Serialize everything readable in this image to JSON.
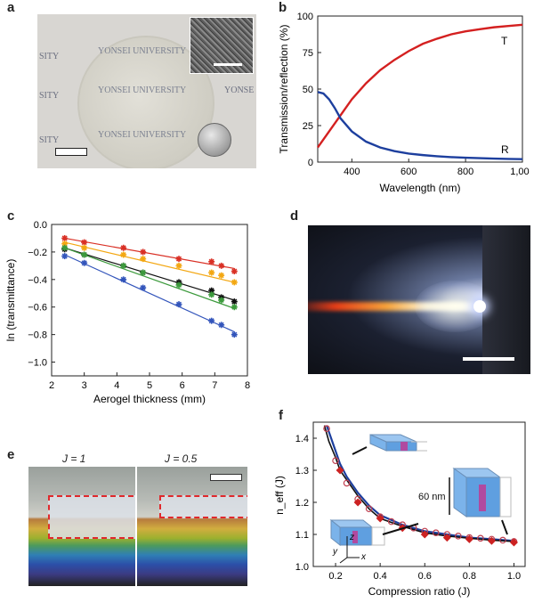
{
  "panels": {
    "a": {
      "label": "a",
      "watermark": "YONSEI UNIVERSITY",
      "watermark_left": "SITY",
      "watermark_right": "YONSE"
    },
    "b": {
      "label": "b"
    },
    "c": {
      "label": "c"
    },
    "d": {
      "label": "d"
    },
    "e": {
      "label": "e",
      "j1_label": "J = 1",
      "j05_label": "J = 0.5"
    },
    "f": {
      "label": "f",
      "inset_dim": "60 nm",
      "axis_x": "x",
      "axis_y": "y",
      "axis_z": "z"
    }
  },
  "chart_data": [
    {
      "id": "b",
      "type": "line",
      "xlabel": "Wavelength (nm)",
      "ylabel": "Transmission/reflection (%)",
      "xlim": [
        280,
        1000
      ],
      "ylim": [
        0,
        100
      ],
      "xticks": [
        400,
        600,
        800,
        1000
      ],
      "xtick_labels": [
        "400",
        "600",
        "800",
        "1,000"
      ],
      "yticks": [
        0,
        25,
        50,
        75,
        100
      ],
      "series": [
        {
          "name": "T",
          "color": "#d42020",
          "x": [
            280,
            320,
            360,
            400,
            450,
            500,
            550,
            600,
            650,
            700,
            750,
            800,
            850,
            900,
            950,
            1000
          ],
          "y": [
            10,
            21,
            32,
            43,
            54,
            63,
            70,
            76,
            81,
            84.5,
            87.5,
            89.5,
            91,
            92.3,
            93.2,
            94
          ]
        },
        {
          "name": "R",
          "color": "#1d3f9e",
          "x": [
            280,
            300,
            320,
            340,
            360,
            400,
            450,
            500,
            550,
            600,
            650,
            700,
            750,
            800,
            850,
            900,
            950,
            1000
          ],
          "y": [
            48,
            47,
            43,
            37,
            30,
            21,
            14,
            10,
            7.5,
            5.8,
            4.8,
            4,
            3.4,
            3,
            2.7,
            2.4,
            2.2,
            2
          ]
        }
      ]
    },
    {
      "id": "c",
      "type": "scatter",
      "xlabel": "Aerogel thickness (mm)",
      "ylabel": "ln (transmittance)",
      "xlim": [
        2,
        8
      ],
      "ylim": [
        -1.1,
        0
      ],
      "xticks": [
        2,
        3,
        4,
        5,
        6,
        7,
        8
      ],
      "yticks": [
        0,
        -0.2,
        -0.4,
        -0.6,
        -0.8,
        -1.0
      ],
      "ytick_labels": [
        "0.0",
        "−0.2",
        "−0.4",
        "−0.6",
        "−0.8",
        "−1.0"
      ],
      "x_points": [
        2.4,
        3.0,
        4.2,
        4.8,
        5.9,
        6.9,
        7.2,
        7.6
      ],
      "series": [
        {
          "color": "#d93025",
          "y": [
            -0.1,
            -0.13,
            -0.17,
            -0.2,
            -0.25,
            -0.27,
            -0.3,
            -0.34
          ],
          "fit": [
            -0.1,
            -0.32
          ]
        },
        {
          "color": "#f3a712",
          "y": [
            -0.14,
            -0.17,
            -0.22,
            -0.25,
            -0.3,
            -0.35,
            -0.37,
            -0.42
          ],
          "fit": [
            -0.13,
            -0.42
          ]
        },
        {
          "color": "#111111",
          "y": [
            -0.18,
            -0.22,
            -0.3,
            -0.35,
            -0.42,
            -0.48,
            -0.53,
            -0.56
          ],
          "fit": [
            -0.17,
            -0.55
          ]
        },
        {
          "color": "#3c9a3c",
          "y": [
            -0.17,
            -0.22,
            -0.3,
            -0.35,
            -0.44,
            -0.51,
            -0.55,
            -0.6
          ],
          "fit": [
            -0.17,
            -0.61
          ]
        },
        {
          "color": "#3355bb",
          "y": [
            -0.23,
            -0.28,
            -0.4,
            -0.46,
            -0.58,
            -0.7,
            -0.73,
            -0.8
          ],
          "fit": [
            -0.22,
            -0.78
          ]
        }
      ]
    },
    {
      "id": "f",
      "type": "line",
      "xlabel": "Compression ratio (J)",
      "ylabel": "n_eff (J)",
      "xlim": [
        0.1,
        1.05
      ],
      "ylim": [
        1.0,
        1.45
      ],
      "xticks": [
        0.2,
        0.4,
        0.6,
        0.8,
        1.0
      ],
      "yticks": [
        1.0,
        1.1,
        1.2,
        1.3,
        1.4
      ],
      "series": [
        {
          "name": "model-blue",
          "color": "#1d3f9e",
          "x": [
            0.16,
            0.18,
            0.2,
            0.22,
            0.25,
            0.3,
            0.35,
            0.4,
            0.5,
            0.6,
            0.7,
            0.8,
            0.9,
            1.0
          ],
          "y": [
            1.44,
            1.4,
            1.36,
            1.32,
            1.28,
            1.23,
            1.19,
            1.16,
            1.13,
            1.11,
            1.1,
            1.09,
            1.085,
            1.08
          ]
        },
        {
          "name": "model-black",
          "color": "#111111",
          "x": [
            0.15,
            0.17,
            0.2,
            0.22,
            0.25,
            0.3,
            0.35,
            0.4,
            0.5,
            0.6,
            0.7,
            0.8,
            0.9,
            1.0
          ],
          "y": [
            1.44,
            1.39,
            1.34,
            1.3,
            1.27,
            1.22,
            1.18,
            1.15,
            1.125,
            1.105,
            1.095,
            1.088,
            1.082,
            1.078
          ]
        },
        {
          "name": "open-circles",
          "color": "#c04050",
          "x": [
            0.16,
            0.2,
            0.25,
            0.3,
            0.35,
            0.4,
            0.45,
            0.5,
            0.55,
            0.6,
            0.65,
            0.7,
            0.75,
            0.8,
            0.85,
            0.9,
            0.95,
            1.0
          ],
          "y": [
            1.43,
            1.33,
            1.26,
            1.21,
            1.18,
            1.155,
            1.14,
            1.13,
            1.12,
            1.11,
            1.105,
            1.1,
            1.095,
            1.09,
            1.088,
            1.085,
            1.082,
            1.078
          ]
        },
        {
          "name": "diamonds",
          "color": "#cc2222",
          "x": [
            0.22,
            0.3,
            0.4,
            0.5,
            0.6,
            0.7,
            0.8,
            0.9,
            1.0
          ],
          "y": [
            1.3,
            1.2,
            1.15,
            1.12,
            1.1,
            1.09,
            1.085,
            1.08,
            1.075
          ]
        }
      ]
    }
  ]
}
